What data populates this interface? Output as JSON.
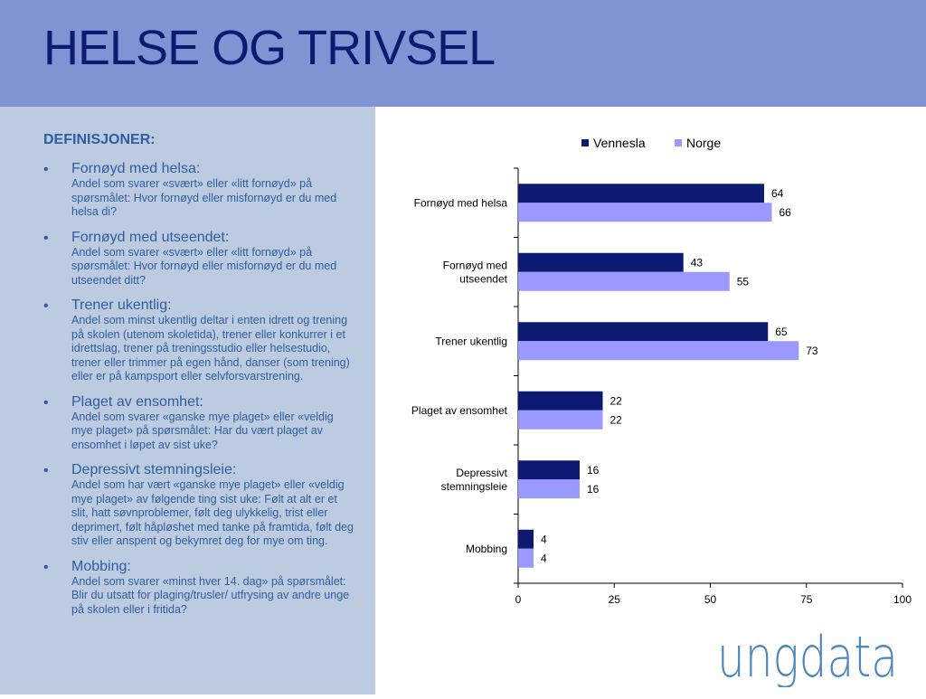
{
  "page_title": "HELSE OG TRIVSEL",
  "definitions": {
    "heading": "DEFINISJONER:",
    "items": [
      {
        "term": "Fornøyd med helsa:",
        "desc": "Andel som svarer «svært» eller «litt fornøyd» på spørsmålet: Hvor fornøyd eller misfornøyd er du med helsa di?"
      },
      {
        "term": "Fornøyd med utseendet:",
        "desc": "Andel som svarer «svært» eller «litt fornøyd» på spørsmålet: Hvor fornøyd eller misfornøyd er du med utseendet ditt?"
      },
      {
        "term": "Trener ukentlig:",
        "desc": "Andel som minst ukentlig deltar i enten idrett og trening på skolen (utenom skoletida), trener eller konkurrer i et idrettslag, trener på treningsstudio eller helsestudio, trener eller trimmer på egen hånd, danser (som trening) eller er på kampsport eller selvforsvarstrening."
      },
      {
        "term": "Plaget av ensomhet:",
        "desc": "Andel som svarer «ganske mye plaget» eller «veldig mye plaget» på spørsmålet: Har du vært plaget av ensomhet i løpet av sist uke?"
      },
      {
        "term": "Depressivt stemningsleie:",
        "desc": "Andel som har vært «ganske mye plaget» eller «veldig mye plaget» av følgende ting sist uke: Følt at alt er et slit, hatt søvnproblemer, følt deg ulykkelig, trist eller deprimert, følt håpløshet med tanke på framtida, følt deg stiv eller anspent og bekymret deg for mye om ting."
      },
      {
        "term": "Mobbing:",
        "desc": "Andel som svarer «minst hver 14. dag» på spørsmålet: Blir du utsatt for plaging/trusler/ utfrysing av andre unge på skolen eller i fritida?"
      }
    ]
  },
  "logo_text": "ungdata",
  "colors": {
    "header_bg": "#8094d4",
    "title": "#0d1a72",
    "panel_bg": "#bccbe0",
    "panel_text": "#2e5da0",
    "logo": "#4d87bd"
  },
  "chart_data": {
    "type": "bar",
    "orientation": "horizontal",
    "categories": [
      [
        "Fornøyd med helsa"
      ],
      [
        "Fornøyd med",
        "utseendet"
      ],
      [
        "Trener ukentlig"
      ],
      [
        "Plaget av ensomhet"
      ],
      [
        "Depressivt",
        "stemningsleie"
      ],
      [
        "Mobbing"
      ]
    ],
    "series": [
      {
        "name": "Vennesla",
        "color": "#0d1a72",
        "values": [
          64,
          43,
          65,
          22,
          16,
          4
        ]
      },
      {
        "name": "Norge",
        "color": "#9999ff",
        "values": [
          66,
          55,
          73,
          22,
          16,
          4
        ]
      }
    ],
    "xlim": [
      0,
      100
    ],
    "xticks": [
      0,
      25,
      50,
      75,
      100
    ],
    "legend_position": "top",
    "grid": false
  }
}
